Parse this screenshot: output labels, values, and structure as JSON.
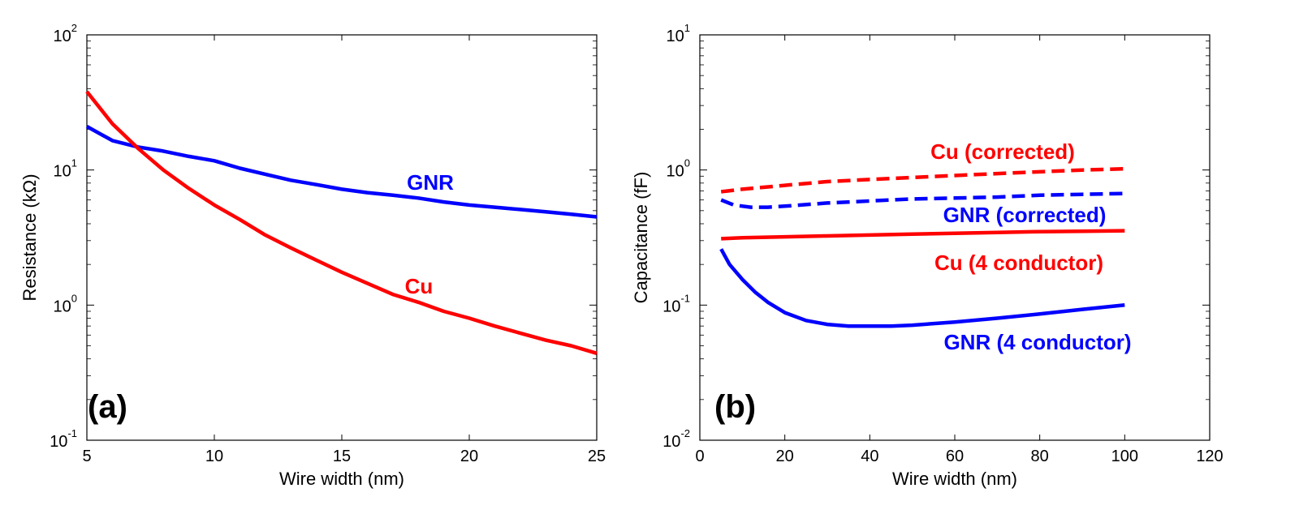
{
  "chart_data": [
    {
      "type": "line",
      "panel_label": "(a)",
      "xlabel": "Wire width (nm)",
      "ylabel": "Resistance (kΩ)",
      "xlim": [
        5,
        25
      ],
      "ylim": [
        0.1,
        100
      ],
      "yscale": "log",
      "xticks": [
        "5",
        "10",
        "15",
        "20",
        "25"
      ],
      "yticks": [
        {
          "base": "10",
          "exp": "-1"
        },
        {
          "base": "10",
          "exp": "0"
        },
        {
          "base": "10",
          "exp": "1"
        },
        {
          "base": "10",
          "exp": "2"
        }
      ],
      "grid": false,
      "series": [
        {
          "name": "GNR",
          "color": "#0000ff",
          "style": "solid",
          "x": [
            5,
            6,
            7,
            8,
            9,
            10,
            11,
            12,
            13,
            14,
            15,
            16,
            17,
            18,
            19,
            20,
            21,
            22,
            23,
            24,
            25
          ],
          "y": [
            21,
            16.5,
            14.8,
            13.8,
            12.6,
            11.7,
            10.3,
            9.3,
            8.4,
            7.8,
            7.2,
            6.8,
            6.5,
            6.2,
            5.8,
            5.5,
            5.3,
            5.1,
            4.9,
            4.7,
            4.5
          ]
        },
        {
          "name": "Cu",
          "color": "#ff0000",
          "style": "solid",
          "x": [
            5,
            6,
            7,
            8,
            9,
            10,
            11,
            12,
            13,
            14,
            15,
            16,
            17,
            18,
            19,
            20,
            21,
            22,
            23,
            24,
            25
          ],
          "y": [
            38,
            22,
            14.5,
            10,
            7.3,
            5.5,
            4.3,
            3.3,
            2.65,
            2.15,
            1.75,
            1.45,
            1.2,
            1.05,
            0.9,
            0.8,
            0.7,
            0.62,
            0.55,
            0.5,
            0.44
          ]
        }
      ]
    },
    {
      "type": "line",
      "panel_label": "(b)",
      "xlabel": "Wire width (nm)",
      "ylabel": "Capacitance (fF)",
      "xlim": [
        0,
        120
      ],
      "ylim": [
        0.01,
        10
      ],
      "yscale": "log",
      "xticks": [
        "0",
        "20",
        "40",
        "60",
        "80",
        "100",
        "120"
      ],
      "yticks": [
        {
          "base": "10",
          "exp": "-2"
        },
        {
          "base": "10",
          "exp": "-1"
        },
        {
          "base": "10",
          "exp": "0"
        },
        {
          "base": "10",
          "exp": "1"
        }
      ],
      "grid": false,
      "series": [
        {
          "name": "Cu (corrected)",
          "color": "#ff0000",
          "style": "dashed",
          "x": [
            5,
            10,
            20,
            30,
            40,
            50,
            60,
            70,
            80,
            90,
            100
          ],
          "y": [
            0.69,
            0.72,
            0.77,
            0.82,
            0.85,
            0.88,
            0.91,
            0.94,
            0.97,
            1.0,
            1.02
          ]
        },
        {
          "name": "GNR (corrected)",
          "color": "#0000ff",
          "style": "dashed",
          "x": [
            5,
            8,
            12,
            16,
            20,
            30,
            40,
            50,
            60,
            70,
            80,
            90,
            100
          ],
          "y": [
            0.6,
            0.55,
            0.53,
            0.53,
            0.54,
            0.57,
            0.59,
            0.61,
            0.62,
            0.63,
            0.65,
            0.66,
            0.67
          ]
        },
        {
          "name": "Cu (4 conductor)",
          "color": "#ff0000",
          "style": "solid",
          "x": [
            5,
            10,
            20,
            30,
            40,
            50,
            60,
            70,
            80,
            90,
            100
          ],
          "y": [
            0.31,
            0.315,
            0.32,
            0.325,
            0.33,
            0.335,
            0.34,
            0.345,
            0.35,
            0.352,
            0.355
          ]
        },
        {
          "name": "GNR (4 conductor)",
          "color": "#0000ff",
          "style": "solid",
          "x": [
            5,
            7,
            10,
            13,
            16,
            20,
            25,
            30,
            35,
            40,
            45,
            50,
            60,
            70,
            80,
            90,
            100
          ],
          "y": [
            0.26,
            0.2,
            0.155,
            0.125,
            0.105,
            0.088,
            0.077,
            0.072,
            0.07,
            0.07,
            0.07,
            0.071,
            0.075,
            0.08,
            0.086,
            0.093,
            0.1
          ]
        }
      ]
    }
  ]
}
